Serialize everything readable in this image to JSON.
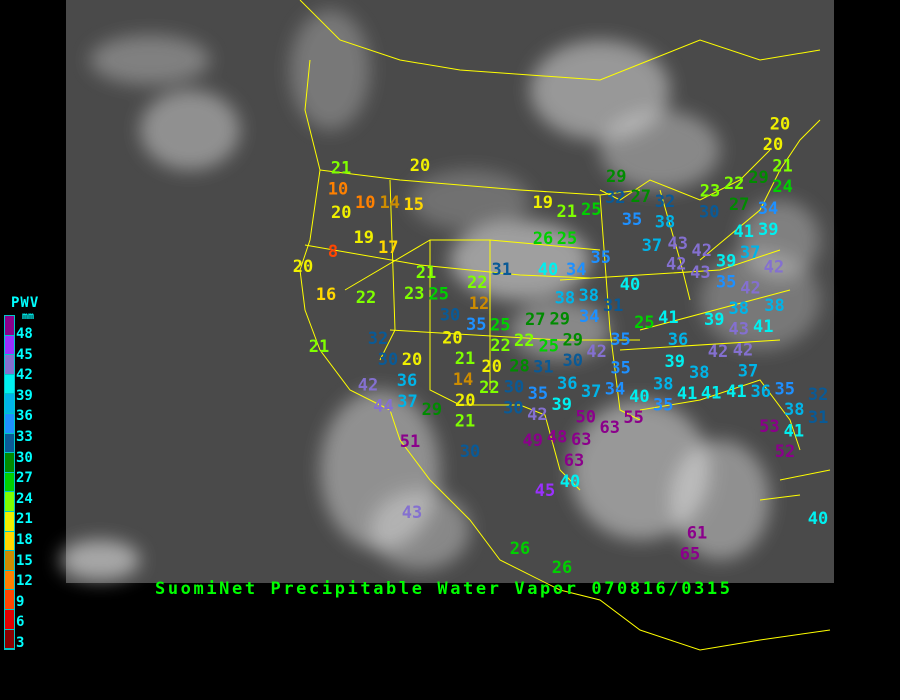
{
  "title": "SuomiNet Precipitable Water Vapor 070816/0315",
  "legend": {
    "title": "PWV",
    "unit": "mm",
    "ticks": [
      "48",
      "45",
      "42",
      "39",
      "36",
      "33",
      "30",
      "27",
      "24",
      "21",
      "18",
      "15",
      "12",
      "9",
      "6",
      "3"
    ],
    "colors": [
      "#8b008b",
      "#9b30ff",
      "#8470d0",
      "#00f0f0",
      "#00b4e8",
      "#1e90ff",
      "#0a5a96",
      "#008b00",
      "#00d000",
      "#7fff00",
      "#f0f000",
      "#ffd700",
      "#cd8c00",
      "#ff8000",
      "#ff4500",
      "#e00000",
      "#8b0000"
    ]
  },
  "map": {
    "background": "#4a4a4a",
    "border_color": "#ffff00",
    "station_values": [
      21,
      10,
      10,
      14,
      15,
      20,
      20,
      19,
      17,
      8,
      20,
      16,
      22,
      21,
      21,
      23,
      25,
      30,
      22,
      12,
      31,
      35,
      25,
      27,
      29,
      32,
      30,
      20,
      20,
      21,
      20,
      14,
      22,
      30,
      42,
      36,
      44,
      37,
      29,
      21,
      20,
      30,
      42,
      35,
      22,
      22,
      25,
      28,
      30,
      31,
      42,
      29,
      38,
      38,
      31,
      34,
      35,
      40,
      34,
      35,
      26,
      25,
      19,
      21,
      25,
      29,
      32,
      27,
      35,
      32,
      38,
      37,
      43,
      42,
      42,
      43,
      40,
      25,
      41,
      36,
      39,
      38,
      38,
      35,
      41,
      41,
      41,
      36,
      35,
      38,
      32,
      31,
      53,
      41,
      52,
      37,
      42,
      42,
      43,
      39,
      41,
      38,
      38,
      42,
      39,
      35,
      42,
      37,
      41,
      39,
      34,
      30,
      27,
      23,
      22,
      24,
      29,
      21,
      20,
      20,
      36,
      37,
      34,
      35,
      40,
      39,
      50,
      55,
      63,
      49,
      48,
      63,
      63,
      40,
      45,
      30,
      51,
      43,
      26,
      61,
      65,
      40,
      26
    ]
  }
}
